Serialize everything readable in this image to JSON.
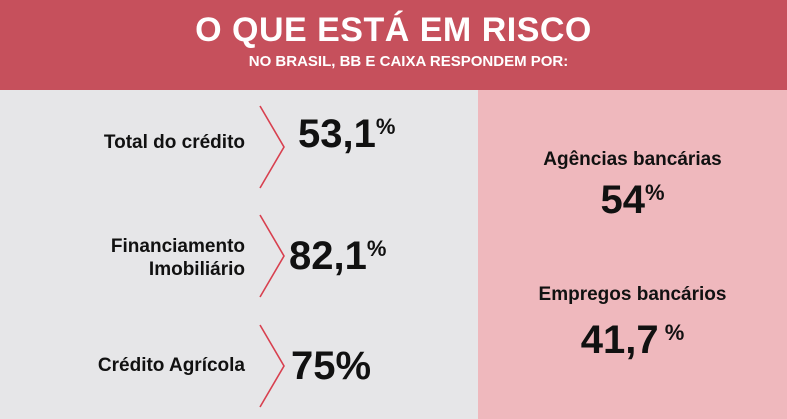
{
  "header": {
    "title": "O QUE ESTÁ EM RISCO",
    "subtitle": "NO BRASIL, BB E CAIXA RESPONDEM POR:"
  },
  "rows": [
    {
      "label": "Total do crédito",
      "value": "53,1",
      "unit": "%"
    },
    {
      "label_line1": "Financiamento",
      "label_line2": "Imobiliário",
      "value": "82,1",
      "unit": "%"
    },
    {
      "label": "Crédito Agrícola",
      "value": "75%"
    }
  ],
  "stats": [
    {
      "label": "Agências bancárias",
      "value": "54",
      "unit": "%"
    },
    {
      "label": "Empregos bancários",
      "value": "41,7",
      "unit": " %"
    }
  ],
  "colors": {
    "header_bg": "#c6505c",
    "left_bg": "#e6e6e8",
    "right_bg": "#efb8bd",
    "chevron": "#d8404f"
  }
}
